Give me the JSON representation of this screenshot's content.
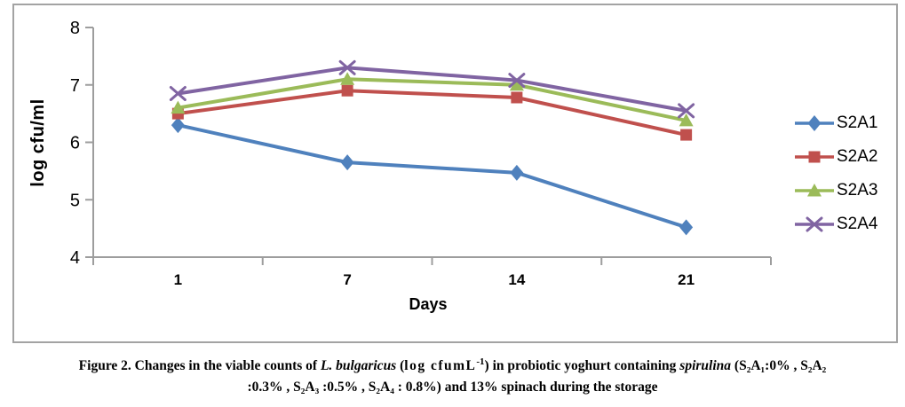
{
  "chart_data": {
    "type": "line",
    "categories": [
      "1",
      "7",
      "14",
      "21"
    ],
    "series": [
      {
        "name": "S2A1",
        "marker": "diamond",
        "color": "#4F81BD",
        "values": [
          6.3,
          5.65,
          5.47,
          4.52
        ]
      },
      {
        "name": "S2A2",
        "marker": "square",
        "color": "#C0504D",
        "values": [
          6.5,
          6.9,
          6.78,
          6.13
        ]
      },
      {
        "name": "S2A3",
        "marker": "triangle",
        "color": "#9BBB59",
        "values": [
          6.6,
          7.1,
          7.0,
          6.38
        ]
      },
      {
        "name": "S2A4",
        "marker": "x",
        "color": "#8064A2",
        "values": [
          6.85,
          7.3,
          7.08,
          6.55
        ]
      }
    ],
    "title": "",
    "xlabel": "Days",
    "ylabel": "log cfu/ml",
    "ylim": [
      4,
      8
    ],
    "ytick_step": 1,
    "yticks": [
      4,
      5,
      6,
      7,
      8
    ],
    "grid": false,
    "legend_position": "right",
    "axis_color": "#9d9d9d",
    "frame_color": "#a3a3a3"
  },
  "caption": {
    "line1": {
      "seg1": "Figure 2. Changes in the viable counts of ",
      "seg2": "L. bulgaricus",
      "seg3": " (",
      "seg4": "log cfumL",
      "seg5": "-1",
      "seg6": ") in probiotic yoghurt containing ",
      "seg7": "spirulina",
      "seg8": " (S₂A₁:0% , S₂A₂"
    },
    "line2": ":0.3% , S₂A₃ :0.5% ,  S₂A₄ : 0.8%) and 13% spinach  during the storage"
  }
}
